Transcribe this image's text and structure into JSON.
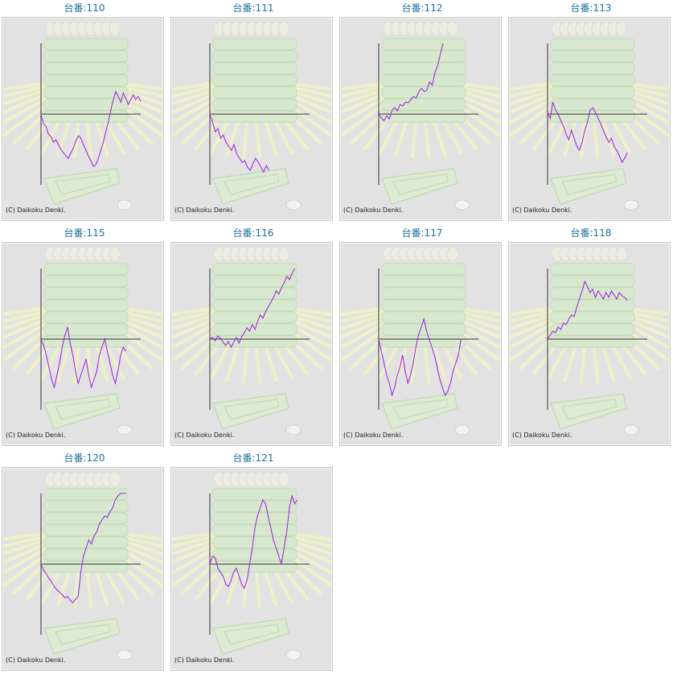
{
  "copyright": "(C) Daikoku Denki.",
  "line_color": "#9c1ee0",
  "title_color": "#1f6f9f",
  "machines": [
    {
      "label": "台番:110",
      "series": [
        0,
        -12,
        -15,
        -25,
        -28,
        -35,
        -32,
        -38,
        -44,
        -48,
        -52,
        -55,
        -48,
        -42,
        -33,
        -27,
        -30,
        -38,
        -45,
        -52,
        -58,
        -65,
        -63,
        -55,
        -45,
        -35,
        -22,
        -10,
        5,
        18,
        28,
        22,
        15,
        26,
        20,
        12,
        18,
        24,
        18,
        22,
        16
      ]
    },
    {
      "label": "台番:111",
      "series": [
        0,
        -10,
        -22,
        -18,
        -30,
        -26,
        -35,
        -40,
        -45,
        -38,
        -50,
        -55,
        -60,
        -58,
        -66,
        -70,
        -62,
        -55,
        -60,
        -66,
        -72,
        -64,
        -70
      ]
    },
    {
      "label": "台番:112",
      "series": [
        0,
        -5,
        -8,
        -2,
        -6,
        5,
        8,
        4,
        12,
        10,
        15,
        14,
        18,
        22,
        20,
        28,
        32,
        28,
        30,
        40,
        36,
        52,
        60,
        75,
        88
      ]
    },
    {
      "label": "台番:113",
      "series": [
        0,
        -5,
        15,
        5,
        0,
        -8,
        -15,
        -25,
        -32,
        -20,
        -30,
        -40,
        -45,
        -35,
        -20,
        -10,
        5,
        8,
        2,
        -5,
        -12,
        -20,
        -28,
        -35,
        -30,
        -40,
        -45,
        -52,
        -60,
        -55,
        -48
      ]
    },
    {
      "label": "台番:115",
      "series": [
        0,
        -8,
        -20,
        -35,
        -50,
        -60,
        -45,
        -30,
        -10,
        5,
        15,
        -5,
        -20,
        -40,
        -55,
        -45,
        -35,
        -25,
        -45,
        -60,
        -50,
        -40,
        -20,
        -10,
        0,
        -15,
        -30,
        -45,
        -55,
        -40,
        -20,
        -10,
        -15
      ]
    },
    {
      "label": "台番:116",
      "series": [
        0,
        2,
        -2,
        4,
        1,
        -4,
        -8,
        -3,
        -10,
        -4,
        2,
        -5,
        3,
        8,
        14,
        10,
        18,
        12,
        22,
        30,
        26,
        34,
        40,
        46,
        52,
        60,
        56,
        64,
        70,
        78,
        74,
        82,
        88
      ]
    },
    {
      "label": "台番:117",
      "series": [
        0,
        -15,
        -30,
        -45,
        -55,
        -70,
        -60,
        -45,
        -35,
        -20,
        -40,
        -55,
        -45,
        -30,
        -10,
        5,
        15,
        25,
        10,
        0,
        -10,
        -20,
        -35,
        -50,
        -60,
        -70,
        -65,
        -55,
        -40,
        -30,
        -20,
        0
      ]
    },
    {
      "label": "台番:118",
      "series": [
        0,
        5,
        10,
        8,
        15,
        12,
        20,
        18,
        25,
        30,
        28,
        40,
        50,
        60,
        72,
        65,
        58,
        62,
        52,
        60,
        55,
        50,
        58,
        52,
        60,
        55,
        50,
        58,
        54,
        52,
        48
      ]
    },
    {
      "label": "台番:120",
      "series": [
        0,
        -8,
        -12,
        -18,
        -22,
        -28,
        -32,
        -35,
        -38,
        -42,
        -40,
        -45,
        -48,
        -44,
        -40,
        -10,
        10,
        20,
        30,
        25,
        35,
        40,
        50,
        55,
        60,
        58,
        65,
        70,
        80,
        85,
        90,
        88,
        95
      ]
    },
    {
      "label": "台番:121",
      "series": [
        0,
        10,
        8,
        -5,
        -10,
        -15,
        -25,
        -28,
        -20,
        -10,
        -5,
        -15,
        -25,
        -30,
        -20,
        0,
        20,
        45,
        60,
        70,
        80,
        75,
        60,
        45,
        30,
        20,
        10,
        0,
        20,
        40,
        70,
        85,
        75,
        80
      ]
    }
  ]
}
